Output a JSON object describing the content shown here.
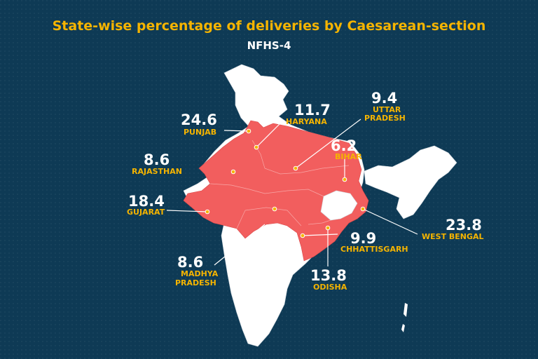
{
  "title": "State-wise percentage of deliveries by Caesarean-section",
  "subtitle": "NFHS-4",
  "colors": {
    "background": "#0e3a55",
    "highlight": "#f25e5e",
    "base": "#ffffff",
    "label": "#f5b400"
  },
  "states": [
    {
      "id": "punjab",
      "name": "PUNJAB",
      "value": "24.6"
    },
    {
      "id": "haryana",
      "name": "HARYANA",
      "value": "11.7"
    },
    {
      "id": "uttar-pradesh",
      "name": "UTTAR PRADESH",
      "name_line1": "UTTAR",
      "name_line2": "PRADESH",
      "value": "9.4"
    },
    {
      "id": "bihar",
      "name": "BIHAR",
      "value": "6.2"
    },
    {
      "id": "rajasthan",
      "name": "RAJASTHAN",
      "value": "8.6"
    },
    {
      "id": "gujarat",
      "name": "GUJARAT",
      "value": "18.4"
    },
    {
      "id": "west-bengal",
      "name": "WEST BENGAL",
      "value": "23.8"
    },
    {
      "id": "chhattisgarh",
      "name": "CHHATTISGARH",
      "value": "9.9"
    },
    {
      "id": "madhya-pradesh",
      "name": "MADHYA PRADESH",
      "name_line1": "MADHYA",
      "name_line2": "PRADESH",
      "value": "8.6"
    },
    {
      "id": "odisha",
      "name": "ODISHA",
      "value": "13.8"
    }
  ]
}
